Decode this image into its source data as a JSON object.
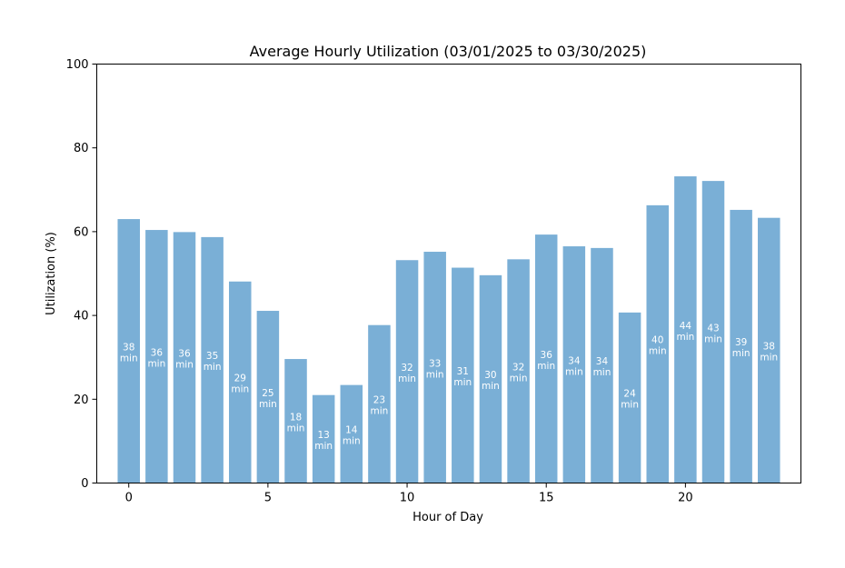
{
  "chart_data": {
    "type": "bar",
    "title": "Average Hourly Utilization (03/01/2025 to 03/30/2025)",
    "xlabel": "Hour of Day",
    "ylabel": "Utilization (%)",
    "x": [
      0,
      1,
      2,
      3,
      4,
      5,
      6,
      7,
      8,
      9,
      10,
      11,
      12,
      13,
      14,
      15,
      16,
      17,
      18,
      19,
      20,
      21,
      22,
      23
    ],
    "values": [
      63.0,
      60.4,
      59.9,
      58.7,
      48.1,
      41.1,
      29.6,
      21.0,
      23.4,
      37.7,
      53.2,
      55.2,
      51.4,
      49.6,
      53.4,
      59.3,
      56.5,
      56.1,
      40.7,
      66.3,
      73.2,
      72.1,
      65.2,
      63.3
    ],
    "bar_labels": [
      "38",
      "36",
      "36",
      "35",
      "29",
      "25",
      "18",
      "13",
      "14",
      "23",
      "32",
      "33",
      "31",
      "30",
      "32",
      "36",
      "34",
      "34",
      "24",
      "40",
      "44",
      "43",
      "39",
      "38"
    ],
    "bar_label_unit": "min",
    "xlim": [
      -1.15,
      24.15
    ],
    "ylim": [
      0,
      100
    ],
    "xticks": [
      0,
      5,
      10,
      15,
      20
    ],
    "yticks": [
      0,
      20,
      40,
      60,
      80,
      100
    ],
    "bar_color": "#7aafd6",
    "grid": false,
    "legend": "none"
  }
}
